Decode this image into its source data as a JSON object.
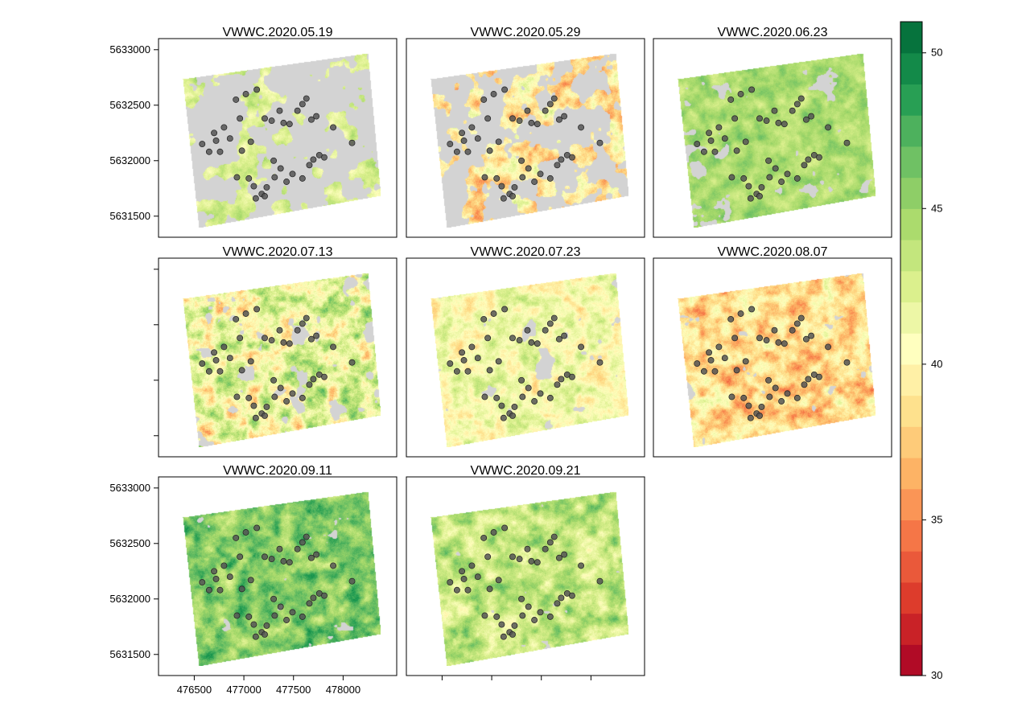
{
  "chart_data": {
    "type": "heatmap",
    "panels": [
      {
        "title": "VWWC.2020.05.19",
        "mean": 42.6,
        "spread": 1.6,
        "cover": 0.42
      },
      {
        "title": "VWWC.2020.05.29",
        "mean": 39.0,
        "spread": 2.6,
        "cover": 0.5
      },
      {
        "title": "VWWC.2020.06.23",
        "mean": 44.4,
        "spread": 1.4,
        "cover": 0.72
      },
      {
        "title": "VWWC.2020.07.13",
        "mean": 41.5,
        "spread": 3.4,
        "cover": 0.68
      },
      {
        "title": "VWWC.2020.07.23",
        "mean": 40.8,
        "spread": 2.2,
        "cover": 0.75
      },
      {
        "title": "VWWC.2020.08.07",
        "mean": 38.4,
        "spread": 2.6,
        "cover": 0.78
      },
      {
        "title": "VWWC.2020.09.11",
        "mean": 45.8,
        "spread": 2.2,
        "cover": 0.82
      },
      {
        "title": "VWWC.2020.09.21",
        "mean": 43.5,
        "spread": 2.2,
        "cover": 0.82
      }
    ],
    "x_ticks": [
      476500,
      477000,
      477500,
      478000
    ],
    "y_ticks": [
      5631500,
      5632000,
      5632500,
      5633000
    ],
    "xlim": [
      476140,
      478540
    ],
    "ylim": [
      5631310,
      5633100
    ],
    "colorbar": {
      "min": 30,
      "max": 51,
      "ticks": [
        30,
        35,
        40,
        45,
        50
      ],
      "palette": [
        "#a50026",
        "#d73027",
        "#f46d43",
        "#fdae61",
        "#fee08b",
        "#ffffbf",
        "#d9ef8b",
        "#a6d96a",
        "#66bd63",
        "#1a9850",
        "#006837"
      ]
    },
    "mask_color": "#d3d3d3",
    "point_color": "#555555",
    "sample_points": [
      [
        476580,
        5632150
      ],
      [
        476650,
        5632080
      ],
      [
        476700,
        5632250
      ],
      [
        476720,
        5632180
      ],
      [
        476760,
        5632080
      ],
      [
        476800,
        5632300
      ],
      [
        476860,
        5632200
      ],
      [
        476920,
        5632550
      ],
      [
        476960,
        5632380
      ],
      [
        476980,
        5632090
      ],
      [
        477020,
        5632600
      ],
      [
        477070,
        5632170
      ],
      [
        476930,
        5631850
      ],
      [
        477130,
        5632640
      ],
      [
        477210,
        5632380
      ],
      [
        477280,
        5632360
      ],
      [
        477360,
        5632450
      ],
      [
        477400,
        5632340
      ],
      [
        477460,
        5632330
      ],
      [
        477540,
        5632450
      ],
      [
        477590,
        5632510
      ],
      [
        477630,
        5632560
      ],
      [
        477730,
        5632400
      ],
      [
        477680,
        5632370
      ],
      [
        477900,
        5632300
      ],
      [
        478090,
        5632160
      ],
      [
        477700,
        5632010
      ],
      [
        477760,
        5632050
      ],
      [
        477810,
        5632030
      ],
      [
        477660,
        5631960
      ],
      [
        477590,
        5631840
      ],
      [
        477490,
        5631880
      ],
      [
        477430,
        5631810
      ],
      [
        477370,
        5631930
      ],
      [
        477310,
        5631850
      ],
      [
        477230,
        5631760
      ],
      [
        477180,
        5631700
      ],
      [
        477100,
        5631770
      ],
      [
        477120,
        5631660
      ],
      [
        477210,
        5631680
      ],
      [
        477050,
        5631840
      ],
      [
        477300,
        5632000
      ]
    ]
  }
}
